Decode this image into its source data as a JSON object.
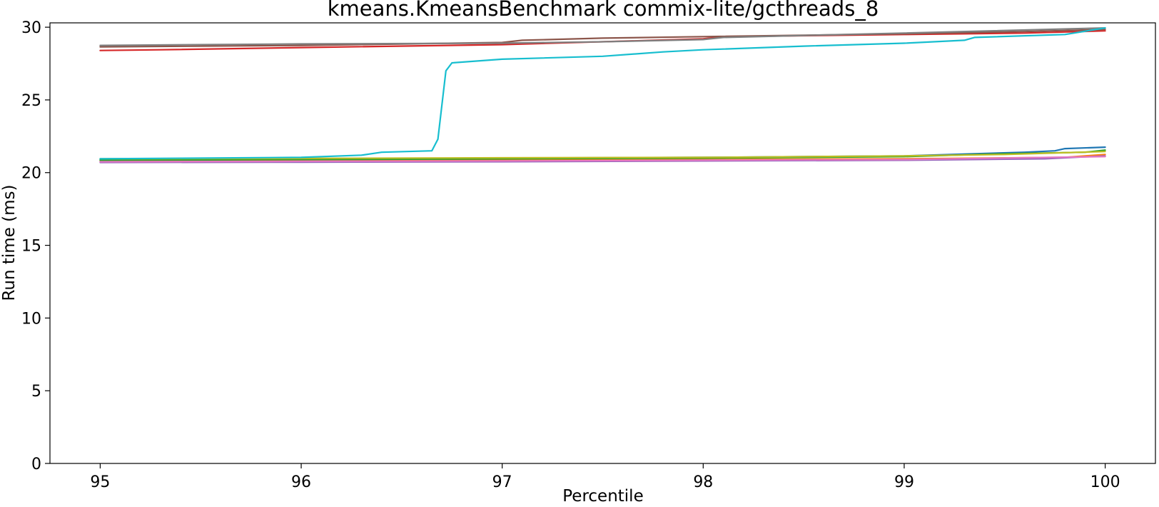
{
  "chart_data": {
    "type": "line",
    "title": "kmeans.KmeansBenchmark commix-lite/gcthreads_8",
    "xlabel": "Percentile",
    "ylabel": "Run time (ms)",
    "xlim": [
      94.75,
      100.25
    ],
    "ylim": [
      0,
      30.3
    ],
    "xticks": [
      95,
      96,
      97,
      98,
      99,
      100
    ],
    "yticks": [
      0,
      5,
      10,
      15,
      20,
      25,
      30
    ],
    "grid": false,
    "legend": "none",
    "series": [
      {
        "color": "#1f77b4",
        "x": [
          95,
          96,
          97,
          98,
          99,
          99.6,
          99.75,
          99.8,
          100
        ],
        "y": [
          20.9,
          20.95,
          21.0,
          21.05,
          21.15,
          21.4,
          21.5,
          21.65,
          21.75
        ]
      },
      {
        "color": "#ff7f0e",
        "x": [
          95,
          96,
          97,
          98,
          99,
          99.8,
          100
        ],
        "y": [
          20.8,
          20.8,
          20.85,
          20.9,
          20.95,
          21.05,
          21.25
        ]
      },
      {
        "color": "#2ca02c",
        "x": [
          95,
          96,
          97,
          98,
          99,
          99.5,
          99.9,
          100
        ],
        "y": [
          20.85,
          20.9,
          20.95,
          21.0,
          21.1,
          21.3,
          21.4,
          21.55
        ]
      },
      {
        "color": "#d62728",
        "x": [
          95,
          95.3,
          96,
          97,
          98,
          98.1,
          99,
          99.6,
          100
        ],
        "y": [
          28.4,
          28.45,
          28.6,
          28.8,
          29.2,
          29.35,
          29.5,
          29.6,
          29.75
        ]
      },
      {
        "color": "#9467bd",
        "x": [
          95,
          96,
          97,
          98,
          99,
          99.7,
          100
        ],
        "y": [
          20.7,
          20.72,
          20.75,
          20.8,
          20.85,
          20.95,
          21.15
        ]
      },
      {
        "color": "#8c564b",
        "x": [
          95,
          96,
          97,
          97.1,
          97.5,
          98,
          99,
          99.6,
          100
        ],
        "y": [
          28.65,
          28.75,
          28.95,
          29.1,
          29.25,
          29.35,
          29.55,
          29.7,
          29.85
        ]
      },
      {
        "color": "#e377c2",
        "x": [
          95,
          96,
          97,
          98,
          99,
          100
        ],
        "y": [
          20.75,
          20.78,
          20.8,
          20.85,
          20.9,
          21.1
        ]
      },
      {
        "color": "#7f7f7f",
        "x": [
          95,
          96,
          97,
          97.5,
          98,
          98.1,
          99,
          100
        ],
        "y": [
          28.75,
          28.85,
          28.9,
          29.0,
          29.15,
          29.3,
          29.6,
          29.95
        ]
      },
      {
        "color": "#bcbd22",
        "x": [
          95,
          96,
          97,
          98,
          99,
          99.5,
          100
        ],
        "y": [
          20.95,
          20.98,
          21.02,
          21.05,
          21.15,
          21.25,
          21.45
        ]
      },
      {
        "color": "#17becf",
        "x": [
          95,
          96,
          96.3,
          96.4,
          96.65,
          96.68,
          96.72,
          96.75,
          97,
          97.5,
          97.8,
          98,
          98.5,
          99,
          99.3,
          99.35,
          99.8,
          100
        ],
        "y": [
          20.95,
          21.05,
          21.2,
          21.4,
          21.5,
          22.3,
          27.0,
          27.55,
          27.8,
          28.0,
          28.3,
          28.45,
          28.7,
          28.9,
          29.1,
          29.3,
          29.5,
          29.95
        ]
      }
    ]
  }
}
